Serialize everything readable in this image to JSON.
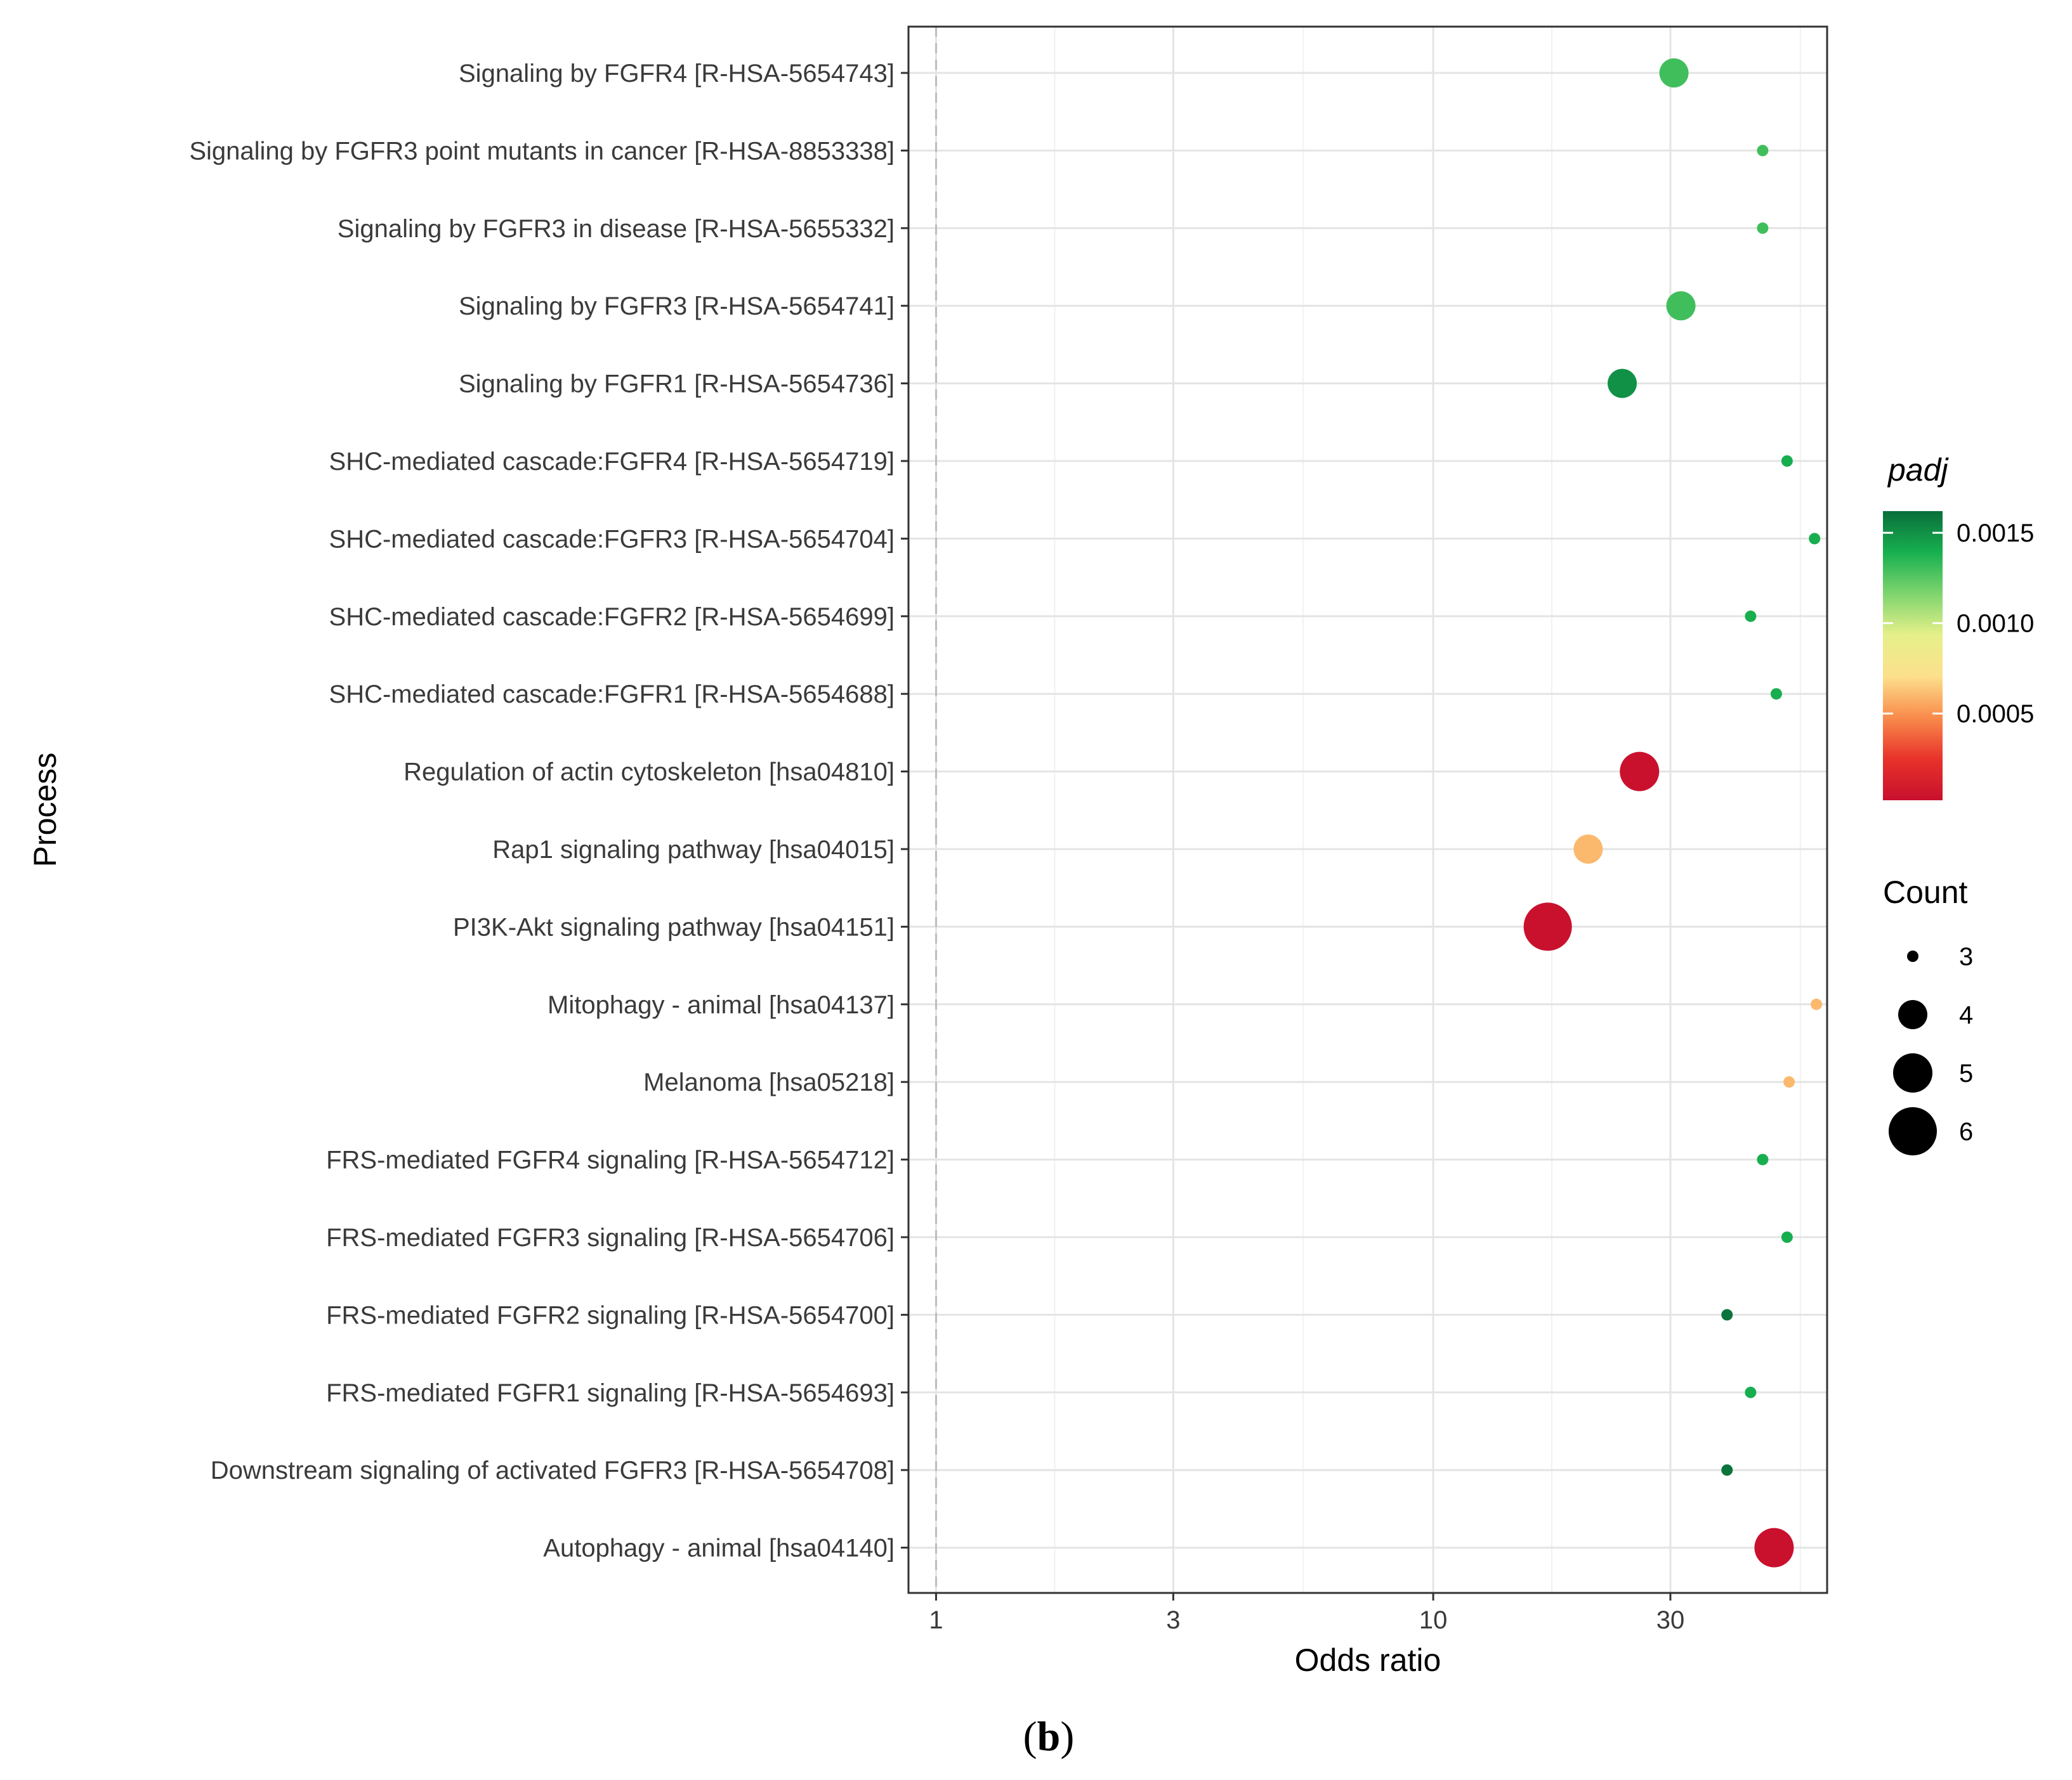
{
  "chart_data": {
    "type": "scatter",
    "xlabel": "Odds ratio",
    "ylabel": "Process",
    "x_scale": "log10",
    "xlim": [
      0.88,
      62
    ],
    "x_ticks": [
      1,
      3,
      10,
      30
    ],
    "x_tick_labels": [
      "1",
      "3",
      "10",
      "30"
    ],
    "reference_line_x": 1,
    "grid": true,
    "categories": [
      "Signaling by FGFR4 [R-HSA-5654743]",
      "Signaling by FGFR3 point mutants in cancer [R-HSA-8853338]",
      "Signaling by FGFR3 in disease [R-HSA-5655332]",
      "Signaling by FGFR3 [R-HSA-5654741]",
      "Signaling by FGFR1 [R-HSA-5654736]",
      "SHC-mediated cascade:FGFR4 [R-HSA-5654719]",
      "SHC-mediated cascade:FGFR3 [R-HSA-5654704]",
      "SHC-mediated cascade:FGFR2 [R-HSA-5654699]",
      "SHC-mediated cascade:FGFR1 [R-HSA-5654688]",
      "Regulation of actin cytoskeleton [hsa04810]",
      "Rap1 signaling pathway [hsa04015]",
      "PI3K-Akt signaling pathway [hsa04151]",
      "Mitophagy - animal [hsa04137]",
      "Melanoma [hsa05218]",
      "FRS-mediated FGFR4 signaling [R-HSA-5654712]",
      "FRS-mediated FGFR3 signaling [R-HSA-5654706]",
      "FRS-mediated FGFR2 signaling [R-HSA-5654700]",
      "FRS-mediated FGFR1 signaling [R-HSA-5654693]",
      "Downstream signaling of activated FGFR3 [R-HSA-5654708]",
      "Autophagy - animal [hsa04140]"
    ],
    "points": [
      {
        "odds_ratio": 30.5,
        "count": 4,
        "padj": 0.0013
      },
      {
        "odds_ratio": 46.0,
        "count": 3,
        "padj": 0.0013
      },
      {
        "odds_ratio": 46.0,
        "count": 3,
        "padj": 0.0013
      },
      {
        "odds_ratio": 31.5,
        "count": 4,
        "padj": 0.0013
      },
      {
        "odds_ratio": 24.0,
        "count": 4,
        "padj": 0.0015
      },
      {
        "odds_ratio": 51.5,
        "count": 3,
        "padj": 0.0014
      },
      {
        "odds_ratio": 58.5,
        "count": 3,
        "padj": 0.0014
      },
      {
        "odds_ratio": 43.5,
        "count": 3,
        "padj": 0.0014
      },
      {
        "odds_ratio": 49.0,
        "count": 3,
        "padj": 0.0014
      },
      {
        "odds_ratio": 26.0,
        "count": 5,
        "padj": 3e-05
      },
      {
        "odds_ratio": 20.5,
        "count": 4,
        "padj": 0.0006
      },
      {
        "odds_ratio": 17.0,
        "count": 6,
        "padj": 3e-05
      },
      {
        "odds_ratio": 59.0,
        "count": 3,
        "padj": 0.0006
      },
      {
        "odds_ratio": 52.0,
        "count": 3,
        "padj": 0.0006
      },
      {
        "odds_ratio": 46.0,
        "count": 3,
        "padj": 0.0014
      },
      {
        "odds_ratio": 51.5,
        "count": 3,
        "padj": 0.0014
      },
      {
        "odds_ratio": 39.0,
        "count": 3,
        "padj": 0.0016
      },
      {
        "odds_ratio": 43.5,
        "count": 3,
        "padj": 0.0014
      },
      {
        "odds_ratio": 39.0,
        "count": 3,
        "padj": 0.0016
      },
      {
        "odds_ratio": 48.5,
        "count": 5,
        "padj": 3e-05
      }
    ],
    "legend_color": {
      "title": "padj",
      "range": [
        2e-05,
        0.00162
      ],
      "ticks": [
        0.0015,
        0.001,
        0.0005
      ],
      "tick_labels": [
        "0.0015",
        "0.0010",
        "0.0005"
      ],
      "colors": [
        "#c8102e",
        "#e8322a",
        "#f98b4b",
        "#fde08c",
        "#e6f08a",
        "#7fd46e",
        "#17b050",
        "#0a6e3a"
      ],
      "placement": "right"
    },
    "legend_size": {
      "title": "Count",
      "values": [
        3,
        4,
        5,
        6
      ],
      "labels": [
        "3",
        "4",
        "5",
        "6"
      ],
      "placement": "right"
    }
  },
  "caption": {
    "open": "(",
    "letter": "b",
    "close": ")"
  }
}
